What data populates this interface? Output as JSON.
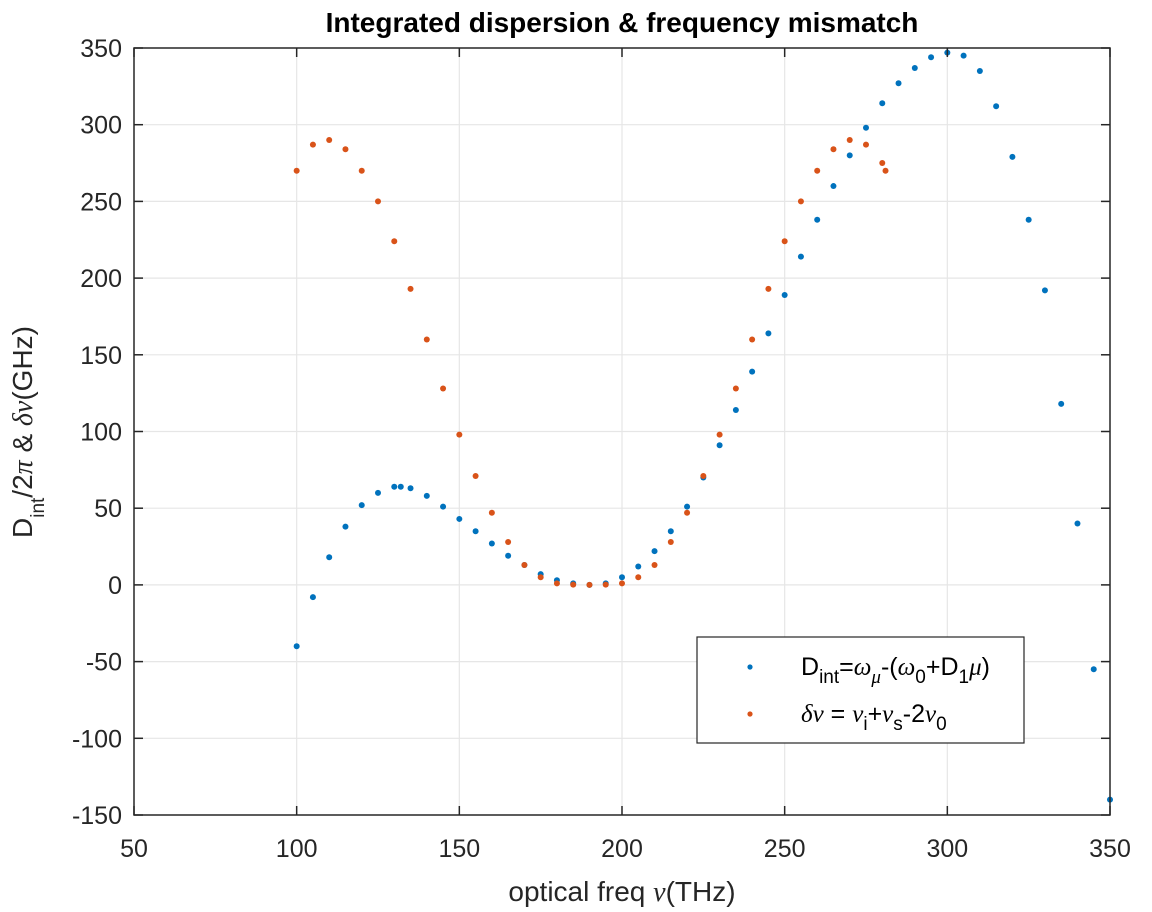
{
  "chart_data": {
    "type": "scatter",
    "title": "Integrated dispersion & frequency mismatch",
    "xlabel": "optical freq ν(THz)",
    "ylabel": "D_int/2π & δν(GHz)",
    "xlim": [
      50,
      350
    ],
    "ylim": [
      -150,
      350
    ],
    "xticks": [
      50,
      100,
      150,
      200,
      250,
      300,
      350
    ],
    "yticks": [
      -150,
      -100,
      -50,
      0,
      50,
      100,
      150,
      200,
      250,
      300,
      350
    ],
    "xtick_labels": [
      "50",
      "100",
      "150",
      "200",
      "250",
      "300",
      "350"
    ],
    "ytick_labels": [
      "-150",
      "-100",
      "-50",
      "0",
      "50",
      "100",
      "150",
      "200",
      "250",
      "300",
      "350"
    ],
    "grid": true,
    "legend_position": "bottom-right",
    "series": [
      {
        "name": "D_int=ω_μ-(ω_0+D_1μ)",
        "color": "#0072BD",
        "x": [
          100,
          105,
          110,
          115,
          120,
          125,
          130,
          132,
          135,
          140,
          145,
          150,
          155,
          160,
          165,
          170,
          175,
          180,
          185,
          190,
          195,
          200,
          205,
          210,
          215,
          220,
          225,
          230,
          235,
          240,
          245,
          250,
          255,
          260,
          265,
          270,
          275,
          280,
          285,
          290,
          295,
          300,
          305,
          310,
          315,
          320,
          325,
          330,
          335,
          340,
          345,
          350
        ],
        "y": [
          -40,
          -8,
          18,
          38,
          52,
          60,
          64,
          64,
          63,
          58,
          51,
          43,
          35,
          27,
          19,
          13,
          7,
          3,
          1,
          0,
          1,
          5,
          12,
          22,
          35,
          51,
          70,
          91,
          114,
          139,
          164,
          189,
          214,
          238,
          260,
          280,
          298,
          314,
          327,
          337,
          344,
          347,
          345,
          335,
          312,
          279,
          238,
          192,
          118,
          40,
          -55,
          -140
        ]
      },
      {
        "name": "δν = ν_i+ν_s-2ν_0",
        "color": "#D95319",
        "x": [
          100,
          105,
          110,
          115,
          120,
          125,
          130,
          135,
          140,
          145,
          150,
          155,
          160,
          165,
          170,
          175,
          180,
          185,
          190,
          195,
          200,
          205,
          210,
          215,
          220,
          225,
          230,
          235,
          240,
          245,
          250,
          255,
          260,
          265,
          270,
          275,
          280,
          281
        ],
        "y": [
          270,
          287,
          290,
          284,
          270,
          250,
          224,
          193,
          160,
          128,
          98,
          71,
          47,
          28,
          13,
          5,
          1,
          0.2,
          0,
          0.2,
          1,
          5,
          13,
          28,
          47,
          71,
          98,
          128,
          160,
          193,
          224,
          250,
          270,
          284,
          290,
          287,
          275,
          270
        ]
      }
    ]
  }
}
